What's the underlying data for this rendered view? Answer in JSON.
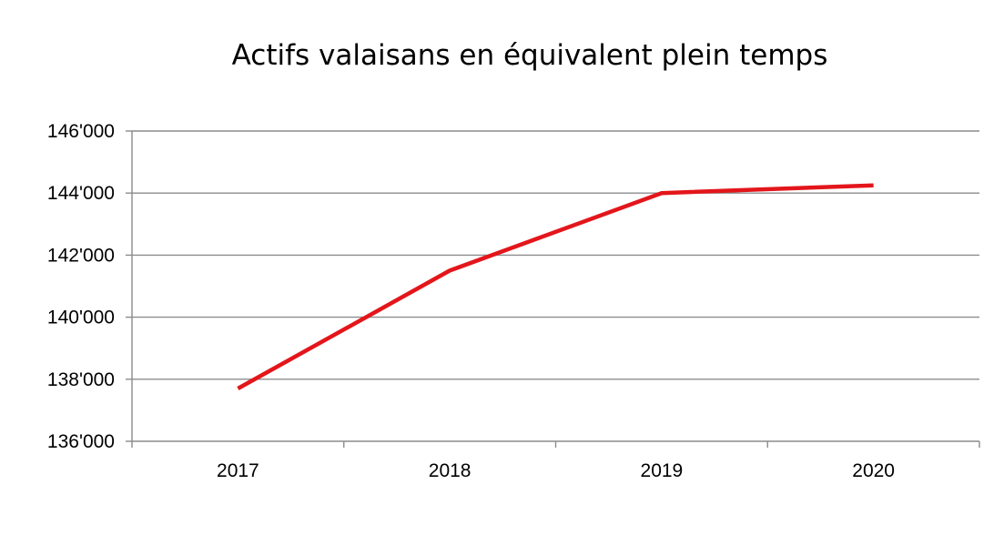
{
  "chart_data": {
    "type": "line",
    "title": "Actifs valaisans en équivalent plein temps",
    "xlabel": "",
    "ylabel": "",
    "categories": [
      "2017",
      "2018",
      "2019",
      "2020"
    ],
    "series": [
      {
        "values": [
          137700,
          141500,
          144000,
          144250
        ]
      }
    ],
    "ylim": [
      136000,
      146000
    ],
    "yticks": [
      136000,
      138000,
      140000,
      142000,
      144000,
      146000
    ],
    "ytick_labels": [
      "136'000",
      "138'000",
      "140'000",
      "142'000",
      "144'000",
      "146'000"
    ],
    "grid": true,
    "legend": "none",
    "colors": {
      "line": "#e3161b",
      "grid": "#8c8c8c",
      "axis": "#8c8c8c"
    }
  }
}
